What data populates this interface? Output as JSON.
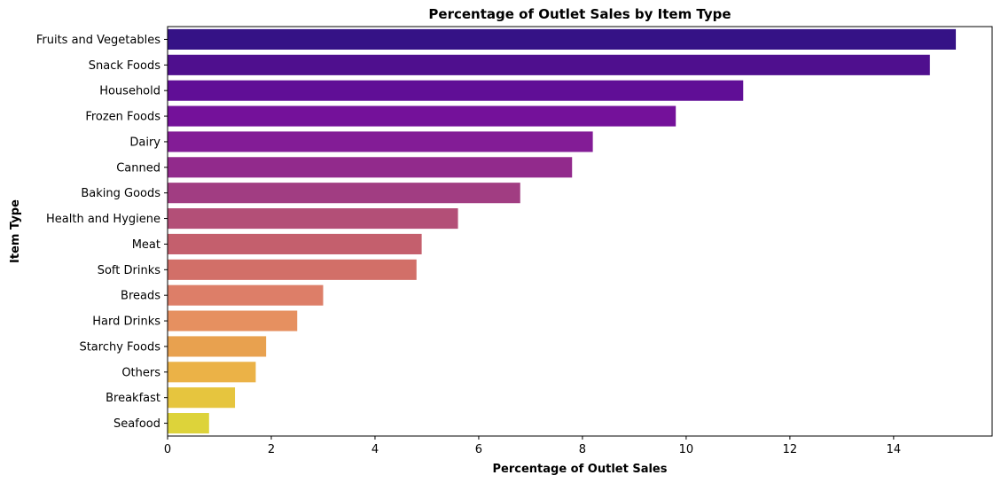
{
  "chart_data": {
    "type": "bar",
    "orientation": "horizontal",
    "title": "Percentage of Outlet Sales by Item Type",
    "xlabel": "Percentage of Outlet Sales",
    "ylabel": "Item Type",
    "xlim": [
      0,
      15.9
    ],
    "xticks": [
      0,
      2,
      4,
      6,
      8,
      10,
      12,
      14
    ],
    "grid": false,
    "categories": [
      "Fruits and Vegetables",
      "Snack Foods",
      "Household",
      "Frozen Foods",
      "Dairy",
      "Canned",
      "Baking Goods",
      "Health and Hygiene",
      "Meat",
      "Soft Drinks",
      "Breads",
      "Hard Drinks",
      "Starchy Foods",
      "Others",
      "Breakfast",
      "Seafood"
    ],
    "values": [
      15.2,
      14.7,
      11.1,
      9.8,
      8.2,
      7.8,
      6.8,
      5.6,
      4.9,
      4.8,
      3.0,
      2.5,
      1.9,
      1.7,
      1.3,
      0.8
    ],
    "colors": [
      "#351286",
      "#4f0f8e",
      "#600e96",
      "#74119a",
      "#831c96",
      "#922a8c",
      "#a13d82",
      "#b34f77",
      "#c45f6d",
      "#d26f68",
      "#dd7e68",
      "#e69060",
      "#e8a14f",
      "#ebb247",
      "#e6c53e",
      "#ddd33a"
    ]
  }
}
